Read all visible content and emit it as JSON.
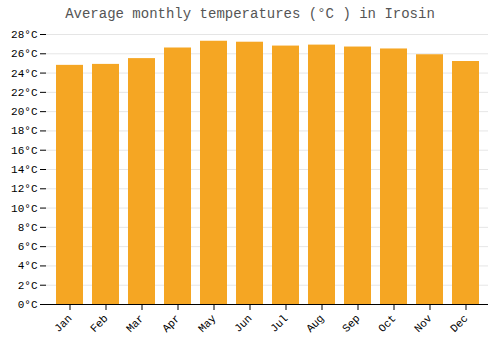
{
  "chart_data": {
    "type": "bar",
    "title": "Average monthly temperatures (°C ) in Irosin",
    "categories": [
      "Jan",
      "Feb",
      "Mar",
      "Apr",
      "May",
      "Jun",
      "Jul",
      "Aug",
      "Sep",
      "Oct",
      "Nov",
      "Dec"
    ],
    "values": [
      24.8,
      24.9,
      25.5,
      26.6,
      27.3,
      27.2,
      26.8,
      26.9,
      26.7,
      26.5,
      25.9,
      25.2
    ],
    "color": "#F5A623",
    "ylim": [
      0,
      28
    ],
    "yticks": [
      {
        "value": 0,
        "label": "0°C"
      },
      {
        "value": 2,
        "label": "2°C"
      },
      {
        "value": 4,
        "label": "4°C"
      },
      {
        "value": 6,
        "label": "6°C"
      },
      {
        "value": 8,
        "label": "8°C"
      },
      {
        "value": 10,
        "label": "10°C"
      },
      {
        "value": 12,
        "label": "12°C"
      },
      {
        "value": 14,
        "label": "14°C"
      },
      {
        "value": 16,
        "label": "16°C"
      },
      {
        "value": 18,
        "label": "18°C"
      },
      {
        "value": 20,
        "label": "20°C"
      },
      {
        "value": 22,
        "label": "22°C"
      },
      {
        "value": 24,
        "label": "24°C"
      },
      {
        "value": 26,
        "label": "26°C"
      },
      {
        "value": 28,
        "label": "28°C"
      }
    ],
    "grid": true
  }
}
